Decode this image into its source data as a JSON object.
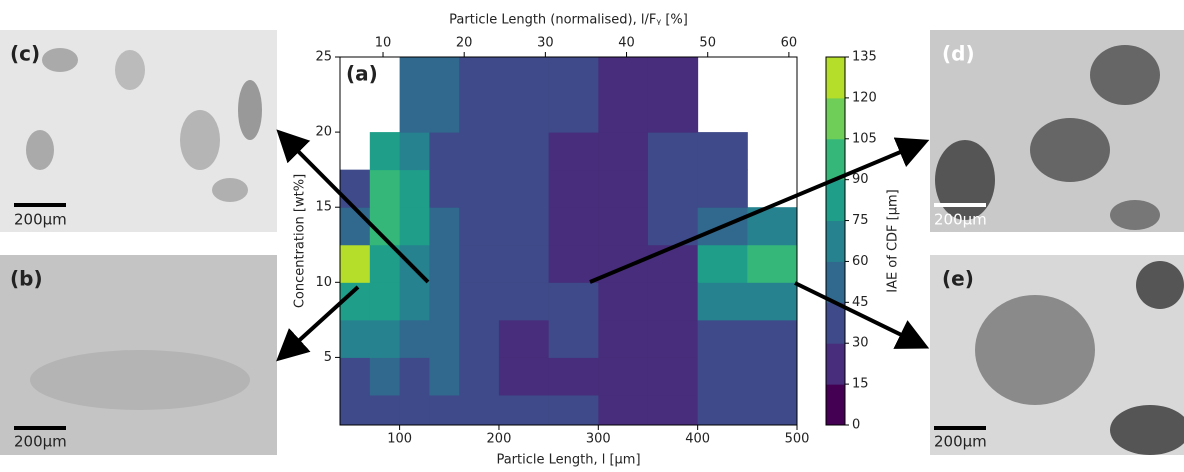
{
  "chart_data": {
    "type": "contour",
    "panel_label": "(a)",
    "x_label": "Particle Length, l [μm]",
    "x2_label": "Particle Length (normalised), l/Fᵧ [%]",
    "y_label": "Concentration [wt%]",
    "colorbar_label": "IAE of CDF [μm]",
    "xlim": [
      40,
      500
    ],
    "xticks": [
      100,
      200,
      300,
      400,
      500
    ],
    "x2lim": [
      4.7,
      61
    ],
    "x2ticks": [
      10,
      20,
      30,
      40,
      50,
      60
    ],
    "ylim": [
      0.5,
      25
    ],
    "yticks": [
      5,
      10,
      15,
      20,
      25
    ],
    "levels": [
      0,
      15,
      30,
      45,
      60,
      75,
      90,
      105,
      120,
      135
    ],
    "colors": [
      "#440154",
      "#472d7b",
      "#3e4a89",
      "#31688e",
      "#26828e",
      "#1f9e89",
      "#35b779",
      "#6ece58",
      "#b5de2b",
      "#fde725"
    ],
    "x_edges": [
      40,
      70,
      100,
      130,
      160,
      200,
      250,
      300,
      350,
      400,
      450,
      500
    ],
    "y_edges": [
      0.5,
      2.5,
      5,
      7.5,
      10,
      12.5,
      15,
      17.5,
      20,
      25
    ],
    "z": [
      [
        40,
        40,
        40,
        40,
        40,
        40,
        35,
        25,
        25,
        40,
        40
      ],
      [
        40,
        50,
        40,
        45,
        40,
        25,
        25,
        25,
        25,
        40,
        40
      ],
      [
        70,
        60,
        50,
        45,
        40,
        25,
        40,
        25,
        25,
        40,
        40
      ],
      [
        80,
        75,
        60,
        55,
        40,
        40,
        40,
        25,
        25,
        60,
        70
      ],
      [
        125,
        80,
        65,
        50,
        40,
        40,
        25,
        25,
        20,
        80,
        90
      ],
      [
        45,
        95,
        75,
        45,
        40,
        40,
        25,
        25,
        40,
        55,
        60
      ],
      [
        40,
        100,
        80,
        40,
        40,
        40,
        25,
        25,
        40,
        40,
        null
      ],
      [
        null,
        75,
        60,
        40,
        40,
        40,
        25,
        25,
        40,
        40,
        null
      ],
      [
        null,
        null,
        55,
        45,
        40,
        40,
        30,
        25,
        25,
        null,
        null
      ]
    ]
  },
  "panels": [
    {
      "label": "(c)",
      "scale": "200μm"
    },
    {
      "label": "(b)",
      "scale": "200μm"
    },
    {
      "label": "(d)",
      "scale": "200μm"
    },
    {
      "label": "(e)",
      "scale": "200μm"
    }
  ]
}
